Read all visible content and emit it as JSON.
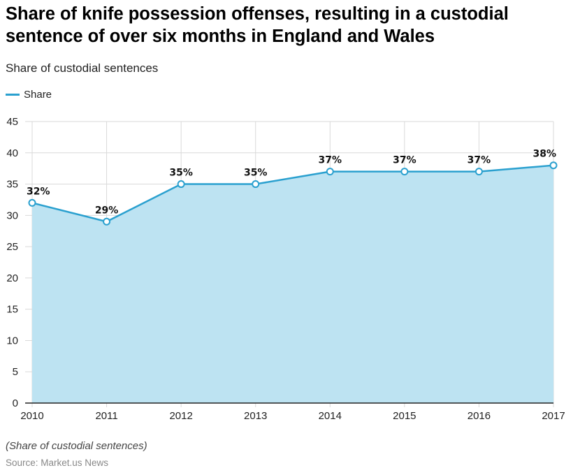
{
  "title": "Share of knife possession offenses, resulting in a custodial sentence of over six months in England and Wales",
  "subtitle": "Share of custodial sentences",
  "footnote": "(Share of custodial sentences)",
  "source": "Source: Market.us News",
  "colors": {
    "line": "#2aa0cf",
    "area": "#bde3f2",
    "grid": "#d9d9d9",
    "axis": "#222222"
  },
  "chart_data": {
    "type": "area",
    "categories": [
      "2010",
      "2011",
      "2012",
      "2013",
      "2014",
      "2015",
      "2016",
      "2017"
    ],
    "series": [
      {
        "name": "Share",
        "values": [
          32,
          29,
          35,
          35,
          37,
          37,
          37,
          38
        ]
      }
    ],
    "data_labels": [
      "32%",
      "29%",
      "35%",
      "35%",
      "37%",
      "37%",
      "37%",
      "38%"
    ],
    "ylim": [
      0,
      45
    ],
    "yticks": [
      0,
      5,
      10,
      15,
      20,
      25,
      30,
      35,
      40,
      45
    ],
    "grid": true,
    "legend": "top-left"
  }
}
